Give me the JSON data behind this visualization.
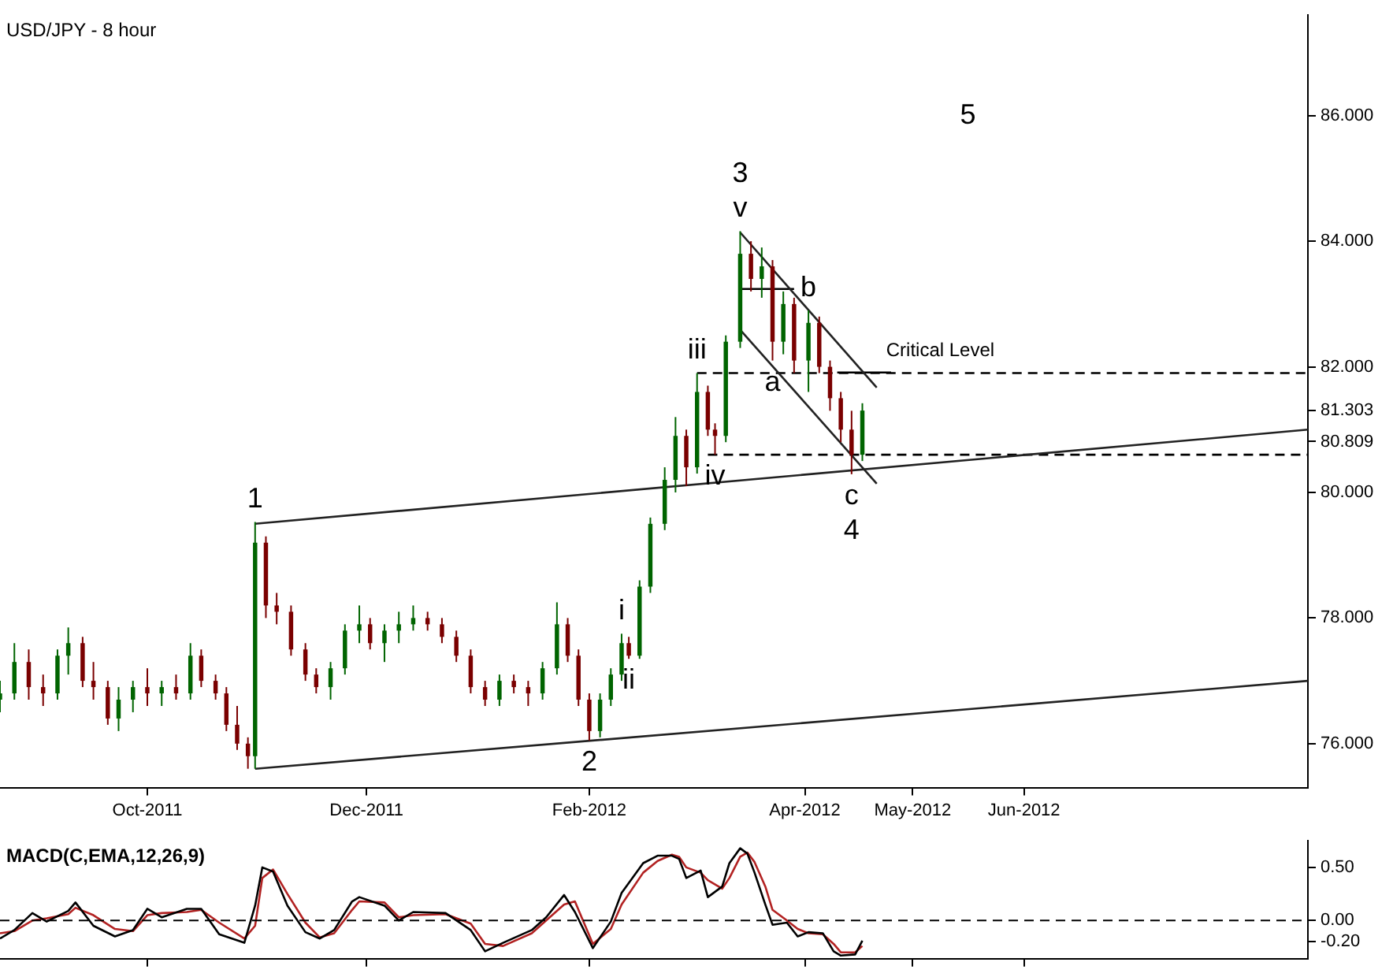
{
  "chart_data": [
    {
      "type": "candlestick",
      "title": "USD/JPY - 8 hour",
      "x": [
        "2011-08-21",
        "2011-08-25",
        "2011-08-29",
        "2011-09-02",
        "2011-09-06",
        "2011-09-09",
        "2011-09-13",
        "2011-09-16",
        "2011-09-20",
        "2011-09-23",
        "2011-09-27",
        "2011-10-01",
        "2011-10-05",
        "2011-10-09",
        "2011-10-13",
        "2011-10-16",
        "2011-10-20",
        "2011-10-23",
        "2011-10-26",
        "2011-10-29",
        "2011-10-31",
        "2011-11-03",
        "2011-11-06",
        "2011-11-10",
        "2011-11-14",
        "2011-11-17",
        "2011-11-21",
        "2011-11-25",
        "2011-11-29",
        "2011-12-02",
        "2011-12-06",
        "2011-12-10",
        "2011-12-14",
        "2011-12-18",
        "2011-12-22",
        "2011-12-26",
        "2011-12-30",
        "2012-01-03",
        "2012-01-07",
        "2012-01-11",
        "2012-01-15",
        "2012-01-19",
        "2012-01-23",
        "2012-01-26",
        "2012-01-29",
        "2012-02-01",
        "2012-02-04",
        "2012-02-07",
        "2012-02-10",
        "2012-02-12",
        "2012-02-15",
        "2012-02-18",
        "2012-02-22",
        "2012-02-25",
        "2012-02-28",
        "2012-03-02",
        "2012-03-05",
        "2012-03-07",
        "2012-03-10",
        "2012-03-14",
        "2012-03-17",
        "2012-03-20",
        "2012-03-23",
        "2012-03-26",
        "2012-03-29",
        "2012-04-02",
        "2012-04-05",
        "2012-04-08",
        "2012-04-11",
        "2012-04-14",
        "2012-04-17"
      ],
      "ohlc": [
        [
          76.7,
          77.0,
          76.5,
          76.8
        ],
        [
          76.8,
          77.6,
          76.7,
          77.3
        ],
        [
          77.3,
          77.5,
          76.7,
          76.9
        ],
        [
          76.9,
          77.1,
          76.6,
          76.8
        ],
        [
          76.8,
          77.5,
          76.7,
          77.4
        ],
        [
          77.4,
          77.85,
          77.1,
          77.6
        ],
        [
          77.6,
          77.7,
          76.9,
          77.0
        ],
        [
          77.0,
          77.3,
          76.7,
          76.9
        ],
        [
          76.9,
          77.0,
          76.3,
          76.4
        ],
        [
          76.4,
          76.9,
          76.2,
          76.7
        ],
        [
          76.7,
          77.0,
          76.5,
          76.9
        ],
        [
          76.9,
          77.2,
          76.6,
          76.8
        ],
        [
          76.8,
          77.0,
          76.6,
          76.9
        ],
        [
          76.9,
          77.1,
          76.7,
          76.8
        ],
        [
          76.8,
          77.6,
          76.7,
          77.4
        ],
        [
          77.4,
          77.5,
          76.9,
          77.0
        ],
        [
          77.0,
          77.1,
          76.7,
          76.8
        ],
        [
          76.8,
          76.9,
          76.2,
          76.3
        ],
        [
          76.3,
          76.6,
          75.9,
          76.0
        ],
        [
          76.0,
          76.1,
          75.6,
          75.8
        ],
        [
          75.8,
          79.53,
          75.6,
          79.2
        ],
        [
          79.2,
          79.3,
          78.0,
          78.2
        ],
        [
          78.2,
          78.4,
          77.9,
          78.1
        ],
        [
          78.1,
          78.2,
          77.4,
          77.5
        ],
        [
          77.5,
          77.6,
          77.0,
          77.1
        ],
        [
          77.1,
          77.2,
          76.8,
          76.9
        ],
        [
          76.9,
          77.3,
          76.7,
          77.2
        ],
        [
          77.2,
          77.9,
          77.1,
          77.8
        ],
        [
          77.8,
          78.2,
          77.6,
          77.9
        ],
        [
          77.9,
          78.0,
          77.5,
          77.6
        ],
        [
          77.6,
          77.9,
          77.3,
          77.8
        ],
        [
          77.8,
          78.1,
          77.6,
          77.9
        ],
        [
          77.9,
          78.2,
          77.8,
          78.0
        ],
        [
          78.0,
          78.1,
          77.8,
          77.9
        ],
        [
          77.9,
          78.0,
          77.6,
          77.7
        ],
        [
          77.7,
          77.8,
          77.3,
          77.4
        ],
        [
          77.4,
          77.5,
          76.8,
          76.9
        ],
        [
          76.9,
          77.0,
          76.6,
          76.7
        ],
        [
          76.7,
          77.1,
          76.6,
          77.0
        ],
        [
          77.0,
          77.1,
          76.8,
          76.9
        ],
        [
          76.9,
          77.0,
          76.6,
          76.8
        ],
        [
          76.8,
          77.3,
          76.7,
          77.2
        ],
        [
          77.2,
          78.25,
          77.1,
          77.9
        ],
        [
          77.9,
          78.0,
          77.3,
          77.4
        ],
        [
          77.4,
          77.5,
          76.6,
          76.7
        ],
        [
          76.7,
          76.8,
          76.05,
          76.2
        ],
        [
          76.2,
          76.8,
          76.1,
          76.7
        ],
        [
          76.7,
          77.2,
          76.6,
          77.1
        ],
        [
          77.1,
          77.75,
          77.0,
          77.6
        ],
        [
          77.6,
          77.7,
          77.35,
          77.4
        ],
        [
          77.4,
          78.6,
          77.35,
          78.5
        ],
        [
          78.5,
          79.6,
          78.4,
          79.5
        ],
        [
          79.5,
          80.4,
          79.4,
          80.2
        ],
        [
          80.2,
          81.2,
          80.0,
          80.9
        ],
        [
          80.9,
          81.0,
          80.1,
          80.4
        ],
        [
          80.4,
          81.9,
          80.3,
          81.6
        ],
        [
          81.6,
          81.7,
          80.9,
          81.0
        ],
        [
          81.0,
          81.1,
          80.6,
          80.9
        ],
        [
          80.9,
          82.5,
          80.8,
          82.4
        ],
        [
          82.4,
          84.16,
          82.3,
          83.8
        ],
        [
          83.8,
          84.0,
          83.2,
          83.4
        ],
        [
          83.4,
          83.9,
          83.1,
          83.6
        ],
        [
          83.6,
          83.7,
          82.1,
          82.4
        ],
        [
          82.4,
          83.2,
          82.2,
          83.0
        ],
        [
          83.0,
          83.1,
          81.9,
          82.1
        ],
        [
          82.1,
          82.9,
          81.6,
          82.7
        ],
        [
          82.7,
          82.8,
          81.9,
          82.0
        ],
        [
          82.0,
          82.1,
          81.3,
          81.5
        ],
        [
          81.5,
          81.6,
          80.8,
          81.0
        ],
        [
          81.0,
          81.3,
          80.29,
          80.6
        ],
        [
          80.6,
          81.42,
          80.5,
          81.303
        ]
      ],
      "series": [
        {
          "type": "line",
          "color": "#222222",
          "x": [
            "2011-10-31",
            "2012-08-19"
          ],
          "values": [
            79.5,
            81.0
          ]
        },
        {
          "type": "line",
          "color": "#222222",
          "x": [
            "2011-10-31",
            "2012-08-19"
          ],
          "values": [
            75.6,
            77.0
          ]
        },
        {
          "type": "line",
          "color": "#222222",
          "x": [
            "2012-03-14",
            "2012-04-21"
          ],
          "values": [
            84.14,
            81.67
          ]
        },
        {
          "type": "line",
          "color": "#222222",
          "x": [
            "2012-03-14",
            "2012-04-21"
          ],
          "values": [
            82.59,
            80.14
          ]
        },
        {
          "type": "line",
          "color": "#000000",
          "x": [
            "2012-03-14",
            "2012-03-29"
          ],
          "values": [
            83.24,
            83.24
          ]
        },
        {
          "type": "line",
          "color": "#000000",
          "x": [
            "2012-04-10",
            "2012-04-25"
          ],
          "values": [
            81.91,
            81.91
          ]
        },
        {
          "type": "line",
          "name": "Critical Level",
          "color": "#000000",
          "line_style": "dashed",
          "x": [
            "2012-03-02",
            "2012-08-19"
          ],
          "values": [
            81.9,
            81.9
          ]
        },
        {
          "type": "line",
          "color": "#000000",
          "line_style": "dashed",
          "x": [
            "2012-03-05",
            "2012-08-19"
          ],
          "values": [
            80.6,
            80.6
          ]
        }
      ],
      "xlim": [
        "2011-08-21",
        "2012-08-19"
      ],
      "xticks": [
        {
          "value": "2011-10-01",
          "label": "Oct-2011"
        },
        {
          "value": "2011-12-01",
          "label": "Dec-2011"
        },
        {
          "value": "2012-02-01",
          "label": "Feb-2012"
        },
        {
          "value": "2012-04-01",
          "label": "Apr-2012"
        },
        {
          "value": "2012-05-01",
          "label": "May-2012"
        },
        {
          "value": "2012-06-01",
          "label": "Jun-2012"
        }
      ],
      "ylim": [
        75.3,
        87.6
      ],
      "yticks": [
        {
          "value": 76,
          "label": "76.000"
        },
        {
          "value": 78,
          "label": "78.000"
        },
        {
          "value": 80,
          "label": "80.000"
        },
        {
          "value": 80.809,
          "label": "80.809"
        },
        {
          "value": 81.303,
          "label": "81.303"
        },
        {
          "value": 82,
          "label": "82.000"
        },
        {
          "value": 84,
          "label": "84.000"
        },
        {
          "value": 86,
          "label": "86.000"
        }
      ],
      "annotations": [
        {
          "text": "1",
          "x": "2011-10-31",
          "y": 79.53
        },
        {
          "text": "2",
          "x": "2012-02-01",
          "y": 76.05
        },
        {
          "text": "v",
          "x": "2012-03-14",
          "y": 84.16
        },
        {
          "text": "3",
          "x": "2012-03-14",
          "y": 84.16
        },
        {
          "text": "c",
          "x": "2012-04-14",
          "y": 80.29
        },
        {
          "text": "4",
          "x": "2012-04-14",
          "y": 80.29
        },
        "5",
        {
          "text": "i",
          "x": "2012-02-10",
          "y": 77.75
        },
        {
          "text": "ii",
          "x": "2012-02-12",
          "y": 77.35
        },
        {
          "text": "iii",
          "x": "2012-03-02",
          "y": 81.9
        },
        {
          "text": "iv",
          "x": "2012-03-07",
          "y": 80.6
        },
        {
          "text": "a",
          "x": "2012-03-23",
          "y": 82.1
        },
        {
          "text": "b",
          "x": "2012-04-02",
          "y": 82.9
        }
      ]
    },
    {
      "type": "line",
      "title": "MACD(C,EMA,12,26,9)",
      "x": [
        "2011-08-21",
        "2011-08-25",
        "2011-08-30",
        "2011-09-03",
        "2011-09-09",
        "2011-09-11",
        "2011-09-16",
        "2011-09-22",
        "2011-09-27",
        "2011-10-01",
        "2011-10-05",
        "2011-10-12",
        "2011-10-16",
        "2011-10-21",
        "2011-10-28",
        "2011-10-31",
        "2011-11-02",
        "2011-11-05",
        "2011-11-09",
        "2011-11-14",
        "2011-11-18",
        "2011-11-22",
        "2011-11-27",
        "2011-11-29",
        "2011-12-06",
        "2011-12-10",
        "2011-12-14",
        "2011-12-23",
        "2011-12-30",
        "2012-01-03",
        "2012-01-08",
        "2012-01-16",
        "2012-01-20",
        "2012-01-25",
        "2012-01-28",
        "2012-02-02",
        "2012-02-07",
        "2012-02-10",
        "2012-02-16",
        "2012-02-20",
        "2012-02-24",
        "2012-02-26",
        "2012-02-28",
        "2012-03-03",
        "2012-03-05",
        "2012-03-09",
        "2012-03-11",
        "2012-03-14",
        "2012-03-16",
        "2012-03-18",
        "2012-03-21",
        "2012-03-23",
        "2012-03-27",
        "2012-03-30",
        "2012-04-02",
        "2012-04-06",
        "2012-04-09",
        "2012-04-11",
        "2012-04-15",
        "2012-04-17"
      ],
      "series": [
        {
          "color": "#000000",
          "values": [
            -0.17,
            -0.09,
            0.07,
            -0.01,
            0.09,
            0.17,
            -0.05,
            -0.15,
            -0.09,
            0.11,
            0.03,
            0.11,
            0.11,
            -0.13,
            -0.21,
            0.14,
            0.5,
            0.46,
            0.14,
            -0.11,
            -0.17,
            -0.09,
            0.18,
            0.22,
            0.14,
            0.0,
            0.08,
            0.07,
            -0.09,
            -0.29,
            -0.21,
            -0.09,
            0.03,
            0.24,
            0.08,
            -0.26,
            -0.01,
            0.26,
            0.54,
            0.61,
            0.61,
            0.58,
            0.4,
            0.47,
            0.22,
            0.32,
            0.54,
            0.68,
            0.63,
            0.45,
            0.15,
            -0.04,
            -0.02,
            -0.15,
            -0.11,
            -0.12,
            -0.29,
            -0.33,
            -0.32,
            -0.19
          ]
        },
        {
          "color": "#b22222",
          "values": [
            -0.12,
            -0.1,
            0.0,
            0.02,
            0.06,
            0.12,
            0.05,
            -0.08,
            -0.1,
            0.05,
            0.07,
            0.08,
            0.1,
            -0.02,
            -0.17,
            -0.05,
            0.4,
            0.48,
            0.25,
            -0.02,
            -0.16,
            -0.12,
            0.1,
            0.18,
            0.17,
            0.03,
            0.05,
            0.06,
            -0.03,
            -0.22,
            -0.24,
            -0.12,
            0.0,
            0.15,
            0.18,
            -0.22,
            -0.08,
            0.15,
            0.45,
            0.56,
            0.62,
            0.6,
            0.5,
            0.45,
            0.38,
            0.3,
            0.4,
            0.6,
            0.64,
            0.55,
            0.32,
            0.1,
            0.0,
            -0.08,
            -0.12,
            -0.13,
            -0.22,
            -0.3,
            -0.3,
            -0.24
          ]
        }
      ],
      "xlim": [
        "2011-08-21",
        "2012-08-19"
      ],
      "xticks": [
        {
          "value": "2011-10-01",
          "label": null
        },
        {
          "value": "2011-12-01",
          "label": null
        },
        {
          "value": "2012-02-01",
          "label": null
        },
        {
          "value": "2012-04-01",
          "label": null
        },
        {
          "value": "2012-05-01",
          "label": null
        },
        {
          "value": "2012-06-01",
          "label": null
        }
      ],
      "ylim": [
        -0.36,
        0.75
      ],
      "yticks": [
        {
          "value": -0.2,
          "label": "-0.20"
        },
        {
          "value": 0,
          "label": "0.00"
        },
        {
          "value": 0.5,
          "label": "0.50"
        }
      ],
      "tick_labels": "y",
      "ref_lines": [
        {
          "axis": "y",
          "value": 0,
          "line_style": "dashed"
        }
      ]
    }
  ]
}
